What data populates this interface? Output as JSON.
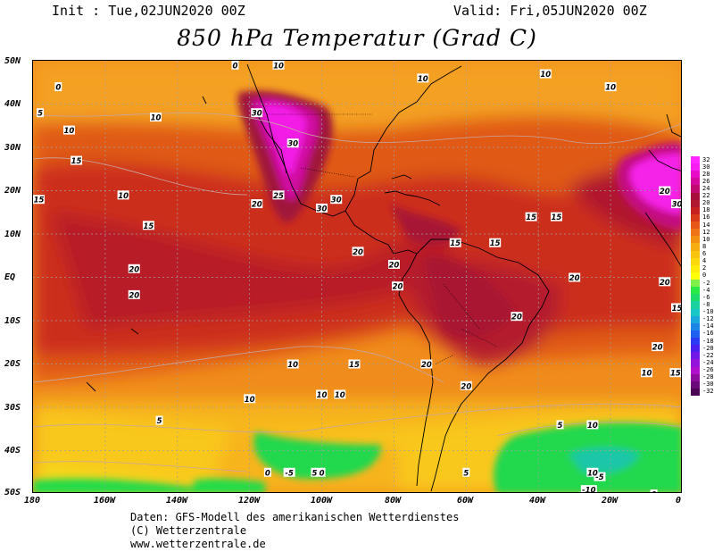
{
  "header": {
    "init": "Init : Tue,02JUN2020 00Z",
    "valid": "Valid: Fri,05JUN2020 00Z",
    "title": "850 hPa Temperatur (Grad C)"
  },
  "axes": {
    "lat_labels": [
      "50N",
      "40N",
      "30N",
      "20N",
      "10N",
      "EQ",
      "10S",
      "20S",
      "30S",
      "40S",
      "50S"
    ],
    "lon_labels": [
      "180",
      "160W",
      "140W",
      "120W",
      "100W",
      "80W",
      "60W",
      "40W",
      "20W",
      "0"
    ]
  },
  "legend": {
    "values": [
      "32",
      "30",
      "28",
      "26",
      "24",
      "22",
      "20",
      "18",
      "16",
      "14",
      "12",
      "10",
      "8",
      "6",
      "4",
      "2",
      "0",
      "-2",
      "-4",
      "-6",
      "-8",
      "-10",
      "-12",
      "-14",
      "-16",
      "-18",
      "-20",
      "-22",
      "-24",
      "-26",
      "-28",
      "-30",
      "-32"
    ],
    "colors": [
      "#ff26ff",
      "#f71cf0",
      "#e80cc8",
      "#d4089c",
      "#c00a70",
      "#a80e3c",
      "#b01830",
      "#c62020",
      "#d83a1a",
      "#e65818",
      "#ee7416",
      "#f39012",
      "#f7ac10",
      "#f9c40e",
      "#fbd80c",
      "#ffeb0a",
      "#ffff0a",
      "#7ff04a",
      "#2ae846",
      "#1edc6a",
      "#1ad2a0",
      "#18c6c6",
      "#1aa8dc",
      "#1c86e6",
      "#2060f0",
      "#2a3af4",
      "#4a20f0",
      "#7018e8",
      "#9414dc",
      "#b010cc",
      "#8c0c9e",
      "#6a0a78",
      "#4a0652"
    ]
  },
  "map_data": {
    "field": "850 hPa temperature",
    "units": "°C",
    "contour_labels": [
      {
        "v": "0",
        "lon": -124,
        "lat": 49
      },
      {
        "v": "10",
        "lon": -112,
        "lat": 49
      },
      {
        "v": "10",
        "lon": -72,
        "lat": 46
      },
      {
        "v": "10",
        "lon": -38,
        "lat": 47
      },
      {
        "v": "10",
        "lon": -20,
        "lat": 44
      },
      {
        "v": "0",
        "lon": -173,
        "lat": 44
      },
      {
        "v": "5",
        "lon": -178,
        "lat": 38
      },
      {
        "v": "10",
        "lon": -170,
        "lat": 34
      },
      {
        "v": "15",
        "lon": -168,
        "lat": 27
      },
      {
        "v": "10",
        "lon": -146,
        "lat": 37
      },
      {
        "v": "10",
        "lon": -155,
        "lat": 19
      },
      {
        "v": "15",
        "lon": -180,
        "lat": 18
      },
      {
        "v": "15",
        "lon": -148,
        "lat": 12
      },
      {
        "v": "20",
        "lon": -152,
        "lat": 2
      },
      {
        "v": "20",
        "lon": -152,
        "lat": -4
      },
      {
        "v": "30",
        "lon": -118,
        "lat": 38
      },
      {
        "v": "30",
        "lon": -108,
        "lat": 31
      },
      {
        "v": "25",
        "lon": -112,
        "lat": 19
      },
      {
        "v": "20",
        "lon": -118,
        "lat": 17
      },
      {
        "v": "30",
        "lon": -100,
        "lat": 16
      },
      {
        "v": "30",
        "lon": -96,
        "lat": 18
      },
      {
        "v": "20",
        "lon": -90,
        "lat": 6
      },
      {
        "v": "20",
        "lon": -80,
        "lat": 3
      },
      {
        "v": "20",
        "lon": -79,
        "lat": -2
      },
      {
        "v": "15",
        "lon": -42,
        "lat": 14
      },
      {
        "v": "15",
        "lon": -35,
        "lat": 14
      },
      {
        "v": "15",
        "lon": -63,
        "lat": 8
      },
      {
        "v": "15",
        "lon": -52,
        "lat": 8
      },
      {
        "v": "20",
        "lon": -5,
        "lat": 20
      },
      {
        "v": "30",
        "lon": 4,
        "lat": 17
      },
      {
        "v": "20",
        "lon": -30,
        "lat": 0
      },
      {
        "v": "20",
        "lon": -5,
        "lat": -1
      },
      {
        "v": "15",
        "lon": -1,
        "lat": -7
      },
      {
        "v": "20",
        "lon": -7,
        "lat": -16
      },
      {
        "v": "10",
        "lon": -10,
        "lat": -22
      },
      {
        "v": "15",
        "lon": -2,
        "lat": -22
      },
      {
        "v": "20",
        "lon": -46,
        "lat": -9
      },
      {
        "v": "20",
        "lon": -60,
        "lat": -25
      },
      {
        "v": "20",
        "lon": -71,
        "lat": -20
      },
      {
        "v": "15",
        "lon": -91,
        "lat": -20
      },
      {
        "v": "10",
        "lon": -95,
        "lat": -27
      },
      {
        "v": "10",
        "lon": -100,
        "lat": -27
      },
      {
        "v": "10",
        "lon": -108,
        "lat": -20
      },
      {
        "v": "10",
        "lon": -120,
        "lat": -28
      },
      {
        "v": "5",
        "lon": -145,
        "lat": -33
      },
      {
        "v": "5",
        "lon": -102,
        "lat": -45
      },
      {
        "v": "0",
        "lon": -115,
        "lat": -45
      },
      {
        "v": "-5",
        "lon": -109,
        "lat": -45
      },
      {
        "v": "0",
        "lon": -100,
        "lat": -45
      },
      {
        "v": "5",
        "lon": -60,
        "lat": -45
      },
      {
        "v": "5",
        "lon": -34,
        "lat": -34
      },
      {
        "v": "10",
        "lon": -25,
        "lat": -34
      },
      {
        "v": "-5",
        "lon": -23,
        "lat": -46
      },
      {
        "v": "10",
        "lon": -25,
        "lat": -45
      },
      {
        "v": "-10",
        "lon": -26,
        "lat": -49
      },
      {
        "v": "0",
        "lon": -8,
        "lat": -50
      }
    ]
  },
  "credits": {
    "line1": "Daten: GFS-Modell des amerikanischen Wetterdienstes",
    "line2": "(C) Wetterzentrale",
    "line3": "www.wetterzentrale.de"
  }
}
